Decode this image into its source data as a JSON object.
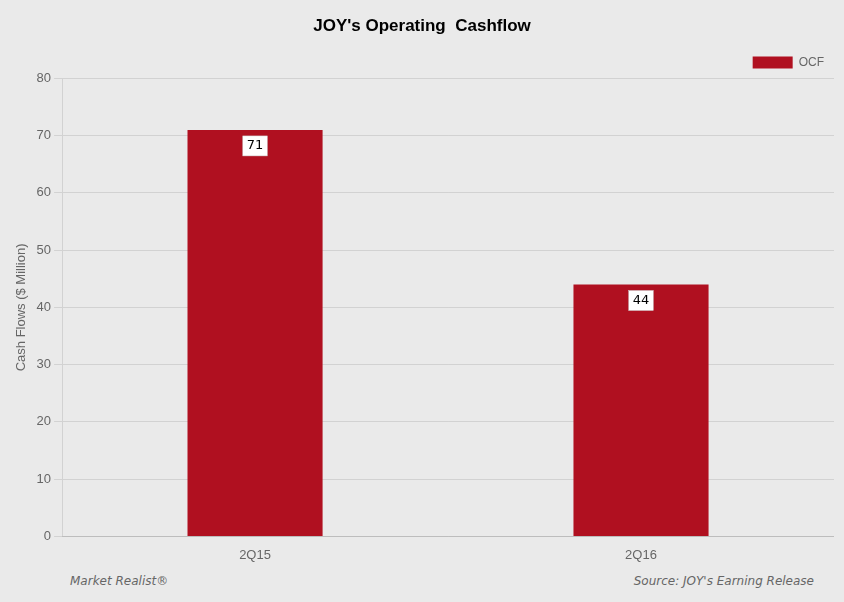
{
  "chart_data": {
    "type": "bar",
    "title": "JOY's Operating  Cashflow",
    "categories": [
      "2Q15",
      "2Q16"
    ],
    "series": [
      {
        "name": "OCF",
        "color": "#b01020",
        "values": [
          71,
          44
        ]
      }
    ],
    "ylabel": "Cash Flows ($ Million)",
    "ylim": [
      0,
      80
    ],
    "yticks": [
      0,
      10,
      20,
      30,
      40,
      50,
      60,
      70,
      80
    ],
    "grid": true,
    "legend": "upper right",
    "data_labels": true,
    "annotations": [
      "Market Realist®",
      "Source: JOY's Earning Release"
    ]
  }
}
